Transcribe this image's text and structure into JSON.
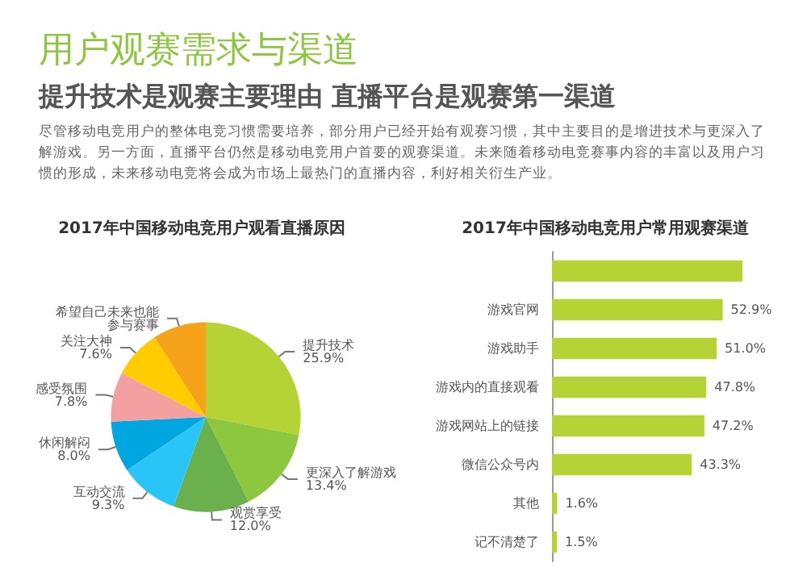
{
  "chart_data": [
    {
      "type": "other",
      "title": "用户观赛需求与渠道",
      "subtitle": "提升技术是观赛主要理由 直播平台是观赛第一渠道",
      "annotations": [
        "尽管移动电竞用户的整体电竞习惯需要培养，部分用户已经开始有观赛习惯，其中主要目的是增进技术与更深入了解游戏。另一方面，直播平台仍然是移动电竞用户首要的观赛渠道。未来随着移动电竞赛事内容的丰富以及用户习惯的形成，未来移动电竞将会成为市场上最热门的直播内容，利好相关衍生产业。"
      ]
    },
    {
      "type": "pie",
      "title": "2017年中国移动电竞用户观看直播原因",
      "categories": [
        "提升技术",
        "更深入了解游戏",
        "观赏享受",
        "互动交流",
        "休闲解闷",
        "感受氛围",
        "关注大神",
        "希望自己未来也能参与赛事"
      ],
      "values": [
        25.9,
        13.4,
        12.0,
        9.3,
        8.0,
        7.8,
        7.6,
        8.4
      ],
      "value_labels": [
        "25.9%",
        "13.4%",
        "12.0%",
        "9.3%",
        "8.0%",
        "7.8%",
        "7.6%",
        null
      ],
      "colors": [
        "#b5d334",
        "#8dc63f",
        "#6ab04c",
        "#29c5f6",
        "#00a6e0",
        "#f4a0a0",
        "#ffcc00",
        "#f7a21b"
      ]
    },
    {
      "type": "bar",
      "orientation": "horizontal",
      "title": "2017年中国移动电竞用户常用观赛渠道",
      "categories": [
        null,
        "游戏官网",
        "游戏助手",
        "游戏内的直接观看",
        "游戏网站上的链接",
        "微信公众号内",
        "其他",
        "记不清楚了"
      ],
      "values": [
        59,
        52.9,
        51.0,
        47.8,
        47.2,
        43.3,
        1.6,
        1.5
      ],
      "value_labels": [
        null,
        "52.9%",
        "51.0%",
        "47.8%",
        "47.2%",
        "43.3%",
        "1.6%",
        "1.5%"
      ],
      "color": "#b5d334"
    }
  ]
}
